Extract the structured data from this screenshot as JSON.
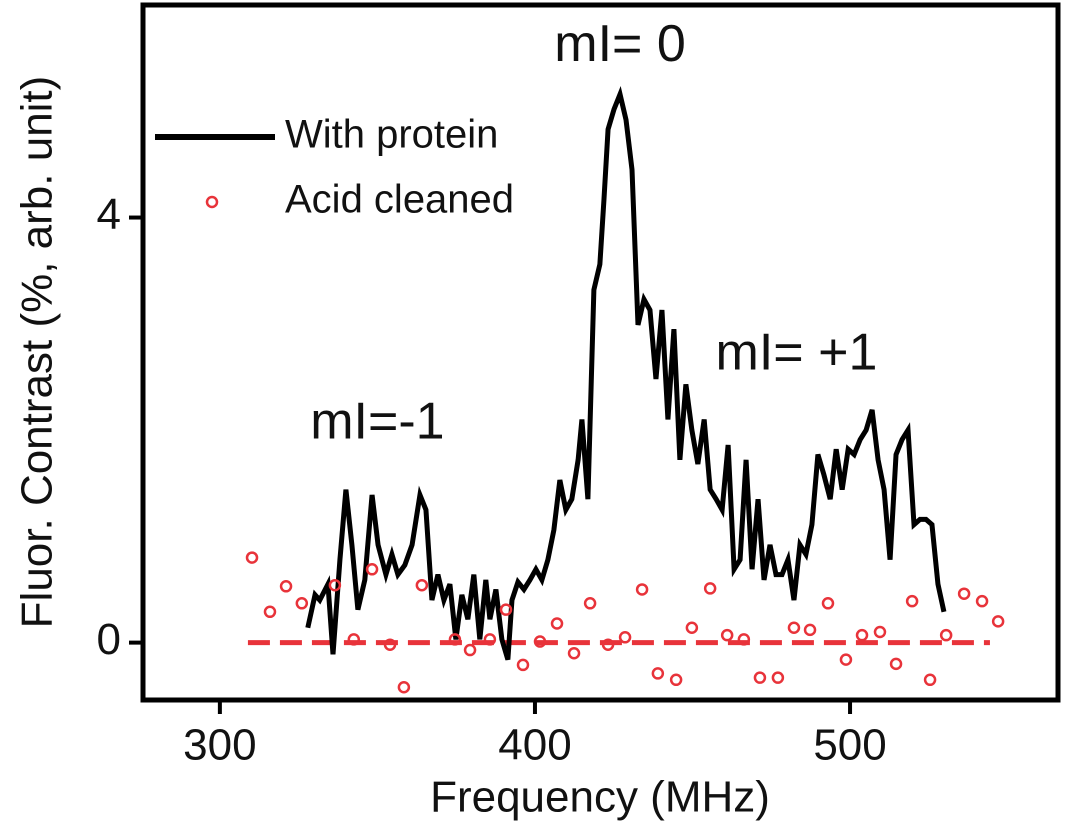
{
  "chart_data": {
    "type": "line",
    "xlabel": "Frequency (MHz)",
    "ylabel": "Fluor. Contrast (%, arb. unit)",
    "xlim": [
      275.6,
      566
    ],
    "ylim": [
      -0.54,
      6.0
    ],
    "xticks": [
      300,
      400,
      500
    ],
    "yticks": [
      0,
      4
    ],
    "annotations": [
      {
        "text": "mI= 0",
        "x": 427,
        "y": 5.6
      },
      {
        "text": "mI=-1",
        "x": 350,
        "y": 2.05
      },
      {
        "text": "mI= +1",
        "x": 483,
        "y": 2.7
      }
    ],
    "series": [
      {
        "name": "With protein",
        "color": "#000000",
        "style": "line",
        "x": [
          327.9,
          330.2,
          331.7,
          334.3,
          335.9,
          338.1,
          340.0,
          341.9,
          343.8,
          346.0,
          348.3,
          350.2,
          352.7,
          354.6,
          356.5,
          358.7,
          361.0,
          363.5,
          365.4,
          367.3,
          369.2,
          371.1,
          373.0,
          374.9,
          376.8,
          378.7,
          380.6,
          382.5,
          384.4,
          385.7,
          387.6,
          389.5,
          391.4,
          392.7,
          394.6,
          396.5,
          398.4,
          400.3,
          402.2,
          404.1,
          406.0,
          407.9,
          409.8,
          411.7,
          413.7,
          414.9,
          416.8,
          418.7,
          420.6,
          421.9,
          423.2,
          425.1,
          427.0,
          428.9,
          430.8,
          432.7,
          434.6,
          436.5,
          438.4,
          440.3,
          442.2,
          444.1,
          446.0,
          447.9,
          449.8,
          451.7,
          453.7,
          455.6,
          457.5,
          459.4,
          461.3,
          463.2,
          465.1,
          467.0,
          468.9,
          470.8,
          472.7,
          474.6,
          476.5,
          478.4,
          480.3,
          482.2,
          484.1,
          486.0,
          487.9,
          489.8,
          491.7,
          493.7,
          495.6,
          497.5,
          499.4,
          501.3,
          503.2,
          505.1,
          507.0,
          508.9,
          510.8,
          512.7,
          514.6,
          516.5,
          518.4,
          520.3,
          522.2,
          524.1,
          526.0,
          527.9,
          529.8
        ],
        "values": [
          0.14,
          0.45,
          0.4,
          0.55,
          -0.11,
          0.78,
          1.44,
          0.92,
          0.31,
          0.59,
          1.39,
          0.92,
          0.64,
          0.83,
          0.64,
          0.73,
          0.92,
          1.39,
          1.25,
          0.4,
          0.64,
          0.4,
          0.55,
          0.03,
          0.45,
          0.22,
          0.64,
          0.03,
          0.59,
          0.22,
          0.5,
          0.03,
          -0.16,
          0.4,
          0.57,
          0.5,
          0.59,
          0.69,
          0.59,
          0.78,
          1.06,
          1.53,
          1.25,
          1.35,
          1.72,
          2.1,
          1.35,
          3.32,
          3.56,
          4.17,
          4.83,
          5.02,
          5.16,
          4.92,
          4.45,
          2.99,
          3.23,
          3.13,
          2.48,
          3.13,
          2.1,
          2.95,
          1.72,
          2.43,
          2.0,
          1.68,
          2.1,
          1.44,
          1.35,
          1.25,
          1.86,
          0.69,
          0.78,
          1.72,
          0.69,
          1.35,
          0.59,
          0.92,
          0.64,
          0.64,
          0.78,
          0.4,
          0.92,
          0.83,
          1.11,
          1.77,
          1.58,
          1.35,
          1.82,
          1.44,
          1.82,
          1.77,
          1.91,
          2.0,
          2.19,
          1.72,
          1.44,
          0.78,
          1.77,
          1.91,
          2.0,
          1.11,
          1.16,
          1.16,
          1.11,
          0.55,
          0.29
        ]
      },
      {
        "name": "Acid cleaned",
        "color": "#e8333a",
        "style": "markers",
        "x": [
          310.2,
          315.9,
          321.0,
          326.0,
          336.5,
          342.5,
          348.3,
          354.0,
          358.4,
          364.1,
          374.6,
          379.4,
          385.7,
          390.8,
          396.2,
          401.6,
          407.0,
          412.4,
          417.5,
          423.2,
          428.6,
          434.0,
          439.0,
          444.8,
          449.8,
          455.6,
          461.0,
          466.3,
          471.4,
          477.1,
          482.2,
          487.3,
          493.0,
          498.7,
          503.8,
          509.5,
          514.6,
          519.7,
          525.4,
          530.5,
          536.2,
          541.9,
          547.0
        ],
        "values": [
          0.8,
          0.29,
          0.53,
          0.37,
          0.54,
          0.03,
          0.69,
          -0.02,
          -0.42,
          0.54,
          0.03,
          -0.07,
          0.03,
          0.31,
          -0.21,
          0.01,
          0.18,
          -0.1,
          0.37,
          -0.02,
          0.05,
          0.5,
          -0.29,
          -0.35,
          0.14,
          0.51,
          0.07,
          0.03,
          -0.33,
          -0.33,
          0.14,
          0.12,
          0.37,
          -0.16,
          0.07,
          0.1,
          -0.2,
          0.39,
          -0.35,
          0.07,
          0.46,
          0.39,
          0.2
        ]
      }
    ],
    "baseline": {
      "x": [
        308.9,
        544.4
      ],
      "values": [
        0,
        0
      ],
      "color": "#e8333a"
    }
  }
}
